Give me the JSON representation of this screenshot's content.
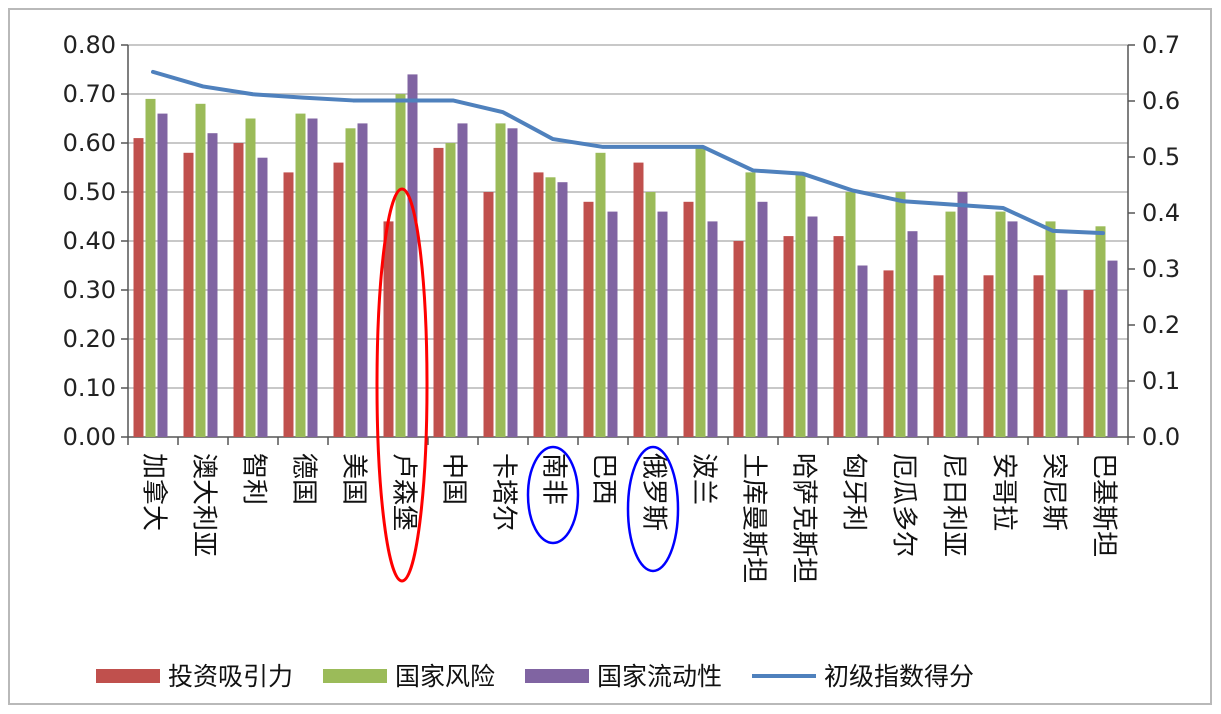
{
  "chart_data": {
    "type": "bar",
    "title": "",
    "categories": [
      "加拿大",
      "澳大利亚",
      "智利",
      "德国",
      "美国",
      "卢森堡",
      "中国",
      "卡塔尔",
      "南非",
      "巴西",
      "俄罗斯",
      "波兰",
      "土库曼斯坦",
      "哈萨克斯坦",
      "匈牙利",
      "厄瓜多尔",
      "尼日利亚",
      "安哥拉",
      "突尼斯",
      "巴基斯坦"
    ],
    "series": [
      {
        "name": "投资吸引力",
        "axis": "left",
        "kind": "bar",
        "color": "#c0504d",
        "values": [
          0.61,
          0.58,
          0.6,
          0.54,
          0.56,
          0.44,
          0.59,
          0.5,
          0.54,
          0.48,
          0.56,
          0.48,
          0.4,
          0.41,
          0.41,
          0.34,
          0.33,
          0.33,
          0.33,
          0.3
        ]
      },
      {
        "name": "国家风险",
        "axis": "left",
        "kind": "bar",
        "color": "#9bbb59",
        "values": [
          0.69,
          0.68,
          0.65,
          0.66,
          0.63,
          0.7,
          0.6,
          0.64,
          0.53,
          0.58,
          0.5,
          0.59,
          0.54,
          0.54,
          0.5,
          0.5,
          0.46,
          0.46,
          0.44,
          0.43
        ]
      },
      {
        "name": "国家流动性",
        "axis": "left",
        "kind": "bar",
        "color": "#8064a2",
        "values": [
          0.66,
          0.62,
          0.57,
          0.65,
          0.64,
          0.74,
          0.64,
          0.63,
          0.52,
          0.46,
          0.46,
          0.44,
          0.48,
          0.45,
          0.35,
          0.42,
          0.5,
          0.44,
          0.3,
          0.36
        ]
      },
      {
        "name": "初级指数得分",
        "axis": "right",
        "kind": "line",
        "color": "#4f81bd",
        "values": [
          0.652,
          0.626,
          0.612,
          0.606,
          0.601,
          0.601,
          0.601,
          0.58,
          0.532,
          0.518,
          0.518,
          0.518,
          0.476,
          0.47,
          0.44,
          0.421,
          0.415,
          0.409,
          0.368,
          0.364
        ]
      }
    ],
    "y_left": {
      "min": 0,
      "max": 0.8,
      "ticks": [
        "0.00",
        "0.10",
        "0.20",
        "0.30",
        "0.40",
        "0.50",
        "0.60",
        "0.70",
        "0.80"
      ]
    },
    "y_right": {
      "min": 0,
      "max": 0.7,
      "ticks": [
        "0.0",
        "0.1",
        "0.2",
        "0.3",
        "0.4",
        "0.5",
        "0.6",
        "0.7"
      ]
    },
    "grid": true,
    "legend_position": "bottom",
    "highlights": [
      {
        "category": "卢森堡",
        "color": "#ff0000",
        "shape": "ellipse"
      },
      {
        "category": "南非",
        "color": "#0000ff",
        "shape": "ellipse"
      },
      {
        "category": "俄罗斯",
        "color": "#0000ff",
        "shape": "ellipse"
      }
    ]
  }
}
